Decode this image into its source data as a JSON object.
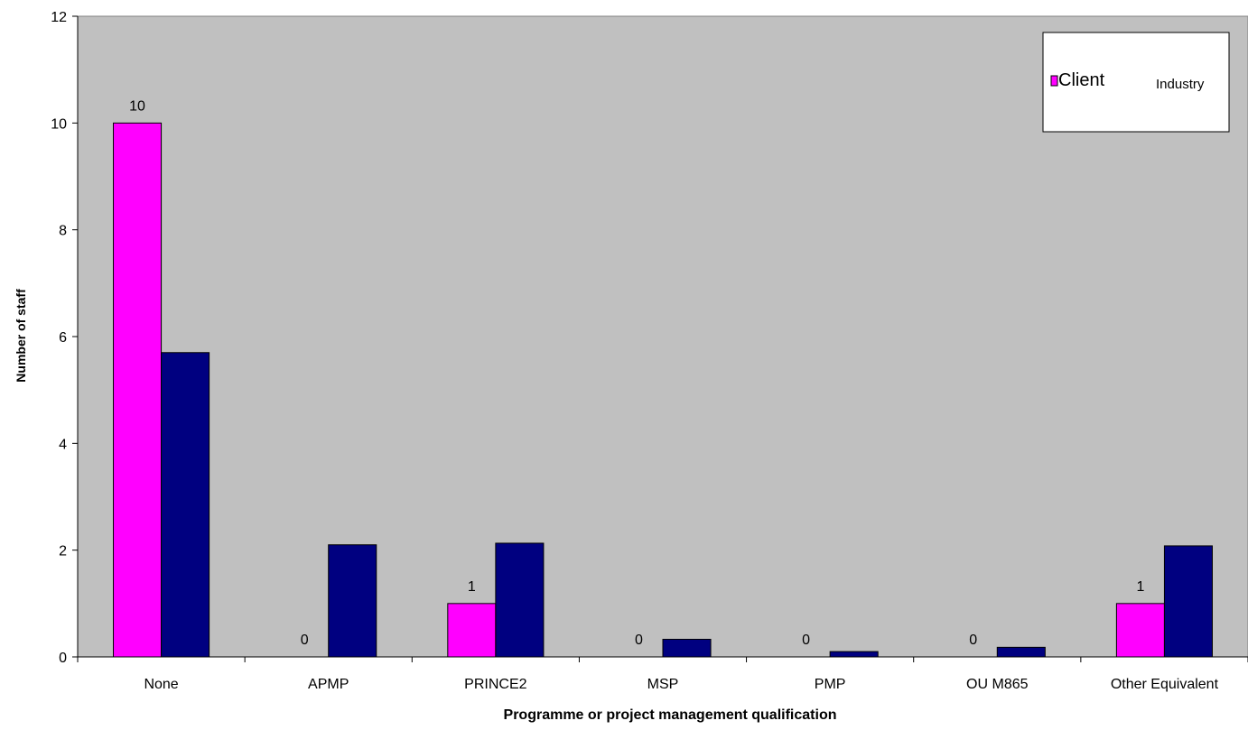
{
  "chart_data": {
    "type": "bar",
    "title": "",
    "xlabel": "Programme or project management qualification",
    "ylabel": "Number of staff",
    "ylim": [
      0,
      12
    ],
    "yticks": [
      0,
      2,
      4,
      6,
      8,
      10,
      12
    ],
    "grid": false,
    "legend_position": "top-right",
    "categories": [
      "None",
      "APMP",
      "PRINCE2",
      "MSP",
      "PMP",
      "OU M865",
      "Other Equivalent"
    ],
    "series": [
      {
        "name": "Client",
        "color": "#FF00FF",
        "values": [
          10,
          0,
          1,
          0,
          0,
          0,
          1
        ],
        "data_labels": [
          "10",
          "0",
          "1",
          "0",
          "0",
          "0",
          "1"
        ]
      },
      {
        "name": "Industry",
        "color": "#000080",
        "values": [
          5.7,
          2.1,
          2.13,
          0.33,
          0.1,
          0.18,
          2.08
        ]
      }
    ],
    "plot_background": "#C0C0C0"
  }
}
